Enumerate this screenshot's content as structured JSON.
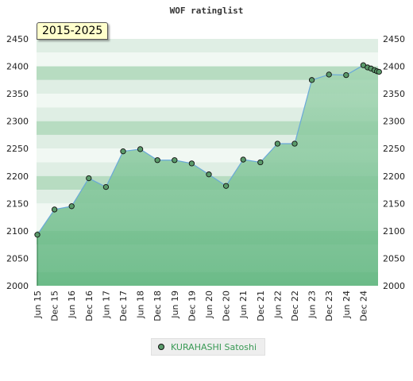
{
  "chart_data": {
    "type": "area",
    "title": "WOF ratinglist",
    "period_label": "2015-2025",
    "ylim": [
      2000,
      2450
    ],
    "yticks": [
      2000,
      2050,
      2100,
      2150,
      2200,
      2250,
      2300,
      2350,
      2400,
      2450
    ],
    "xtick_labels": [
      "Jun 15",
      "Dec 15",
      "Jun 16",
      "Dec 16",
      "Jun 17",
      "Dec 17",
      "Jun 18",
      "Dec 18",
      "Jun 19",
      "Dec 19",
      "Jun 20",
      "Dec 20",
      "Jun 21",
      "Dec 21",
      "Jun 22",
      "Dec 22",
      "Jun 23",
      "Dec 23",
      "Jun 24",
      "Dec 24"
    ],
    "grid": true,
    "legend_position": "bottom-center",
    "series": [
      {
        "name": "KURAHASHI Satoshi",
        "color": "#5a9a6a",
        "points": [
          {
            "x": 0,
            "y": 2093
          },
          {
            "x": 1,
            "y": 2139
          },
          {
            "x": 2,
            "y": 2145
          },
          {
            "x": 3,
            "y": 2196
          },
          {
            "x": 4,
            "y": 2180
          },
          {
            "x": 5,
            "y": 2245
          },
          {
            "x": 6,
            "y": 2249
          },
          {
            "x": 7,
            "y": 2229
          },
          {
            "x": 8,
            "y": 2229
          },
          {
            "x": 9,
            "y": 2223
          },
          {
            "x": 10,
            "y": 2203
          },
          {
            "x": 11,
            "y": 2182
          },
          {
            "x": 12,
            "y": 2230
          },
          {
            "x": 13,
            "y": 2225
          },
          {
            "x": 14,
            "y": 2259
          },
          {
            "x": 15,
            "y": 2259
          },
          {
            "x": 16,
            "y": 2375
          },
          {
            "x": 17,
            "y": 2385
          },
          {
            "x": 18,
            "y": 2384
          },
          {
            "x": 19,
            "y": 2402
          },
          {
            "x": 19.25,
            "y": 2398
          },
          {
            "x": 19.45,
            "y": 2396
          },
          {
            "x": 19.65,
            "y": 2393
          },
          {
            "x": 19.8,
            "y": 2391
          },
          {
            "x": 19.92,
            "y": 2390
          }
        ]
      }
    ]
  },
  "colors": {
    "band_light": "#f1f8f3",
    "band_mid": "#dfeee4",
    "band_green": "#b7dcc1",
    "fill_top": "#9fd2ae",
    "fill_bottom": "#6dbd89",
    "line": "#6aa9d8"
  }
}
